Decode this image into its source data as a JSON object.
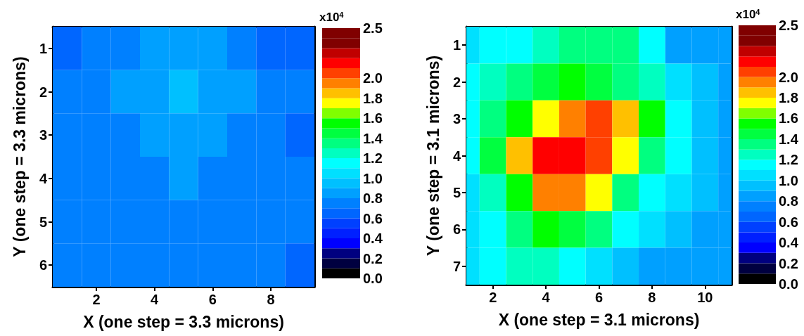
{
  "chart_data": [
    {
      "type": "heatmap",
      "xlabel": "X (one step = 3.3 microns)",
      "ylabel": "Y (one step = 3.3 microns)",
      "clabel": "x10$^{4}$",
      "x": [
        1,
        2,
        3,
        4,
        5,
        6,
        7,
        8,
        9
      ],
      "y": [
        1,
        2,
        3,
        4,
        5,
        6
      ],
      "xlim": [
        0.5,
        9.5
      ],
      "xticks": [
        2,
        4,
        6,
        8
      ],
      "ylim": [
        6.5,
        0.5
      ],
      "yticks": [
        1,
        2,
        3,
        4,
        5,
        6
      ],
      "clim": [
        0,
        2.5
      ],
      "cticks": [
        {
          "value": 0,
          "label": "0.0"
        },
        0.2,
        0.4,
        0.6,
        0.8,
        {
          "value": 1,
          "label": "1.0"
        },
        1.2,
        1.4,
        1.6,
        1.8,
        {
          "value": 2,
          "label": "2.0"
        },
        2.5
      ],
      "cells": [
        [
          0.65,
          0.75,
          0.75,
          0.85,
          0.85,
          0.85,
          0.75,
          0.65,
          0.65
        ],
        [
          0.75,
          0.75,
          0.85,
          0.85,
          0.95,
          0.85,
          0.85,
          0.75,
          0.75
        ],
        [
          0.75,
          0.75,
          0.75,
          0.85,
          0.85,
          0.85,
          0.75,
          0.75,
          0.65
        ],
        [
          0.75,
          0.75,
          0.75,
          0.75,
          0.85,
          0.75,
          0.75,
          0.75,
          0.75
        ],
        [
          0.75,
          0.75,
          0.75,
          0.75,
          0.75,
          0.75,
          0.75,
          0.75,
          0.75
        ],
        [
          0.75,
          0.75,
          0.75,
          0.75,
          0.75,
          0.75,
          0.75,
          0.75,
          0.65
        ]
      ]
    },
    {
      "type": "heatmap",
      "xlabel": "X (one step = 3.1 microns)",
      "ylabel": "Y (one step = 3.1 microns)",
      "clabel": "x10$^{4}$",
      "x": [
        1,
        2,
        3,
        4,
        5,
        6,
        7,
        8,
        9,
        10,
        11
      ],
      "y": [
        1,
        2,
        3,
        4,
        5,
        6,
        7
      ],
      "xlim": [
        1,
        11
      ],
      "xticks": [
        2,
        4,
        6,
        8,
        10
      ],
      "ylim": [
        7.5,
        0.5
      ],
      "yticks": [
        1,
        2,
        3,
        4,
        5,
        6,
        7
      ],
      "clim": [
        0,
        2.5
      ],
      "cticks": [
        {
          "value": 0,
          "label": "0.0"
        },
        0.2,
        0.4,
        0.6,
        0.8,
        {
          "value": 1,
          "label": "1.0"
        },
        1.2,
        1.4,
        1.6,
        1.8,
        {
          "value": 2,
          "label": "2.0"
        },
        2.5
      ],
      "cells": [
        [
          1.05,
          1.15,
          1.15,
          1.25,
          1.35,
          1.35,
          1.35,
          1.15,
          0.85,
          0.85,
          0.85
        ],
        [
          1.15,
          1.25,
          1.35,
          1.45,
          1.55,
          1.45,
          1.35,
          1.25,
          1.05,
          0.95,
          0.85
        ],
        [
          1.15,
          1.35,
          1.55,
          1.75,
          1.95,
          2.05,
          1.85,
          1.55,
          1.15,
          0.95,
          0.85
        ],
        [
          1.15,
          1.45,
          1.85,
          2.15,
          2.15,
          2.05,
          1.75,
          1.35,
          1.15,
          0.95,
          0.85
        ],
        [
          1.05,
          1.25,
          1.55,
          1.95,
          1.95,
          1.75,
          1.35,
          1.15,
          1.05,
          0.95,
          0.85
        ],
        [
          1.05,
          1.15,
          1.35,
          1.55,
          1.45,
          1.35,
          1.15,
          1.05,
          0.95,
          0.85,
          0.85
        ],
        [
          1.05,
          1.15,
          1.25,
          1.25,
          1.15,
          1.05,
          0.95,
          0.85,
          0.85,
          0.85,
          0.85
        ]
      ]
    }
  ]
}
